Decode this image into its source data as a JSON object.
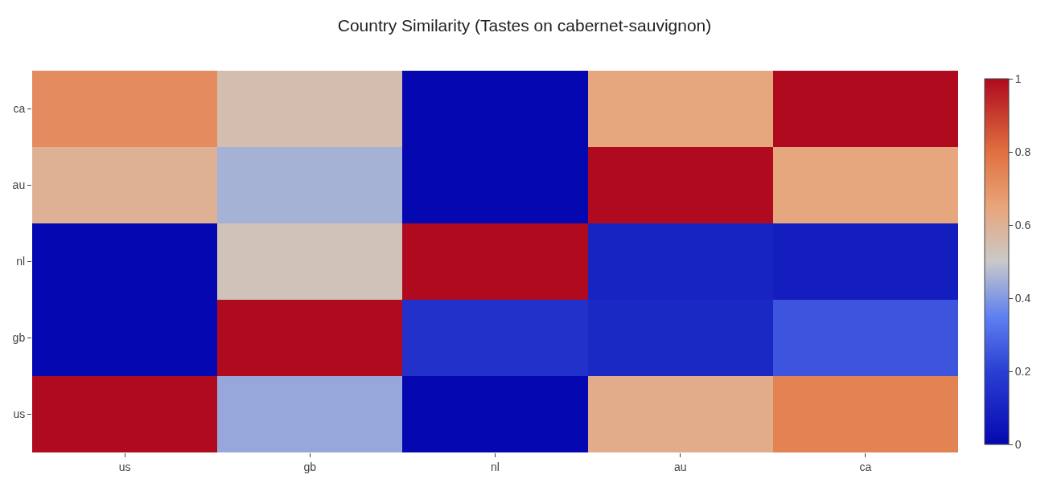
{
  "chart_data": {
    "type": "heatmap",
    "title": "Country Similarity (Tastes on cabernet-sauvignon)",
    "categories": [
      "us",
      "gb",
      "nl",
      "au",
      "ca"
    ],
    "y_categories": [
      "ca",
      "au",
      "nl",
      "gb",
      "us"
    ],
    "cells": [
      [
        0.72,
        0.55,
        0.0,
        0.64,
        1.0
      ],
      [
        0.6,
        0.45,
        0.0,
        1.0,
        0.64
      ],
      [
        0.0,
        0.53,
        1.0,
        0.1,
        0.08
      ],
      [
        0.0,
        1.0,
        0.15,
        0.12,
        0.25
      ],
      [
        1.0,
        0.43,
        0.0,
        0.62,
        0.75
      ]
    ],
    "clim": [
      0,
      1
    ],
    "cticks": [
      0,
      0.2,
      0.4,
      0.6,
      0.8,
      1
    ]
  }
}
